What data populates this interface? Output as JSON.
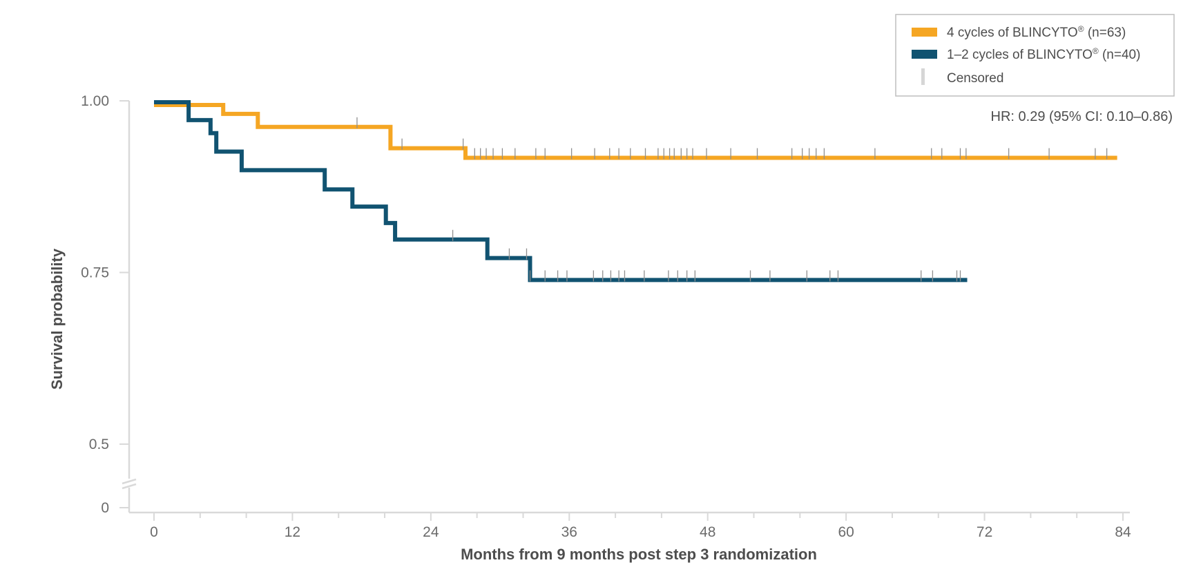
{
  "chart_data": {
    "type": "line",
    "subtype": "kaplan-meier",
    "xlabel": "Months from 9 months post step 3 randomization",
    "ylabel": "Survival probability",
    "x_ticks": [
      0,
      12,
      24,
      36,
      48,
      60,
      72,
      84
    ],
    "x_tick_labels": [
      "0",
      "12",
      "24",
      "36",
      "48",
      "60",
      "72",
      "84"
    ],
    "y_ticks": [
      0.5,
      0.75,
      1.0
    ],
    "y_tick_labels": [
      "0.5",
      "0.75",
      "1.00"
    ],
    "y_zero_label": "0",
    "y_axis_break": true,
    "xlim": [
      0,
      84
    ],
    "ylim": [
      0.5,
      1.0
    ],
    "annotation": "HR: 0.29 (95% CI: 0.10–0.86)",
    "legend_position": "top-right",
    "legend": [
      {
        "label": "4 cycles of BLINCYTO",
        "sup": "®",
        "suffix": " (n=63)",
        "color": "#f5a623",
        "marker": "line"
      },
      {
        "label": "1–2 cycles of BLINCYTO",
        "sup": "®",
        "suffix": " (n=40)",
        "color": "#115371",
        "marker": "line"
      },
      {
        "label": "Censored",
        "color": "#d6d6d6",
        "marker": "tick"
      }
    ],
    "series": [
      {
        "name": "4 cycles of BLINCYTO® (n=63)",
        "color": "#f5a623",
        "steps": [
          [
            0,
            0.994
          ],
          [
            6,
            0.981
          ],
          [
            9,
            0.962
          ],
          [
            20.5,
            0.931
          ],
          [
            27,
            0.917
          ],
          [
            83.5,
            0.917
          ]
        ],
        "censored_times": [
          17.6,
          21.5,
          26.8,
          27.8,
          28.3,
          28.8,
          29.4,
          30.2,
          31.3,
          33.1,
          33.9,
          36.2,
          38.2,
          39.5,
          40.3,
          41.3,
          42.6,
          43.7,
          44.2,
          44.7,
          45.1,
          45.7,
          46.2,
          46.7,
          47.9,
          50.0,
          52.3,
          55.3,
          56.2,
          56.8,
          57.4,
          58.1,
          62.5,
          67.4,
          68.3,
          69.9,
          70.4,
          74.1,
          77.6,
          81.6,
          82.6
        ]
      },
      {
        "name": "1–2 cycles of BLINCYTO® (n=40)",
        "color": "#115371",
        "steps": [
          [
            0,
            0.998
          ],
          [
            3,
            0.972
          ],
          [
            4.9,
            0.953
          ],
          [
            5.4,
            0.926
          ],
          [
            7.6,
            0.899
          ],
          [
            14.8,
            0.871
          ],
          [
            17.2,
            0.846
          ],
          [
            20.1,
            0.822
          ],
          [
            20.9,
            0.798
          ],
          [
            28.9,
            0.771
          ],
          [
            32.6,
            0.739
          ],
          [
            70.5,
            0.739
          ]
        ],
        "censored_times": [
          25.9,
          30.8,
          32.3,
          32.6,
          33.9,
          35.0,
          35.8,
          38.1,
          38.9,
          39.6,
          40.3,
          40.8,
          42.5,
          44.6,
          45.4,
          46.2,
          46.9,
          51.7,
          53.4,
          56.6,
          58.6,
          59.3,
          66.5,
          67.5,
          69.6,
          69.9
        ]
      }
    ]
  }
}
